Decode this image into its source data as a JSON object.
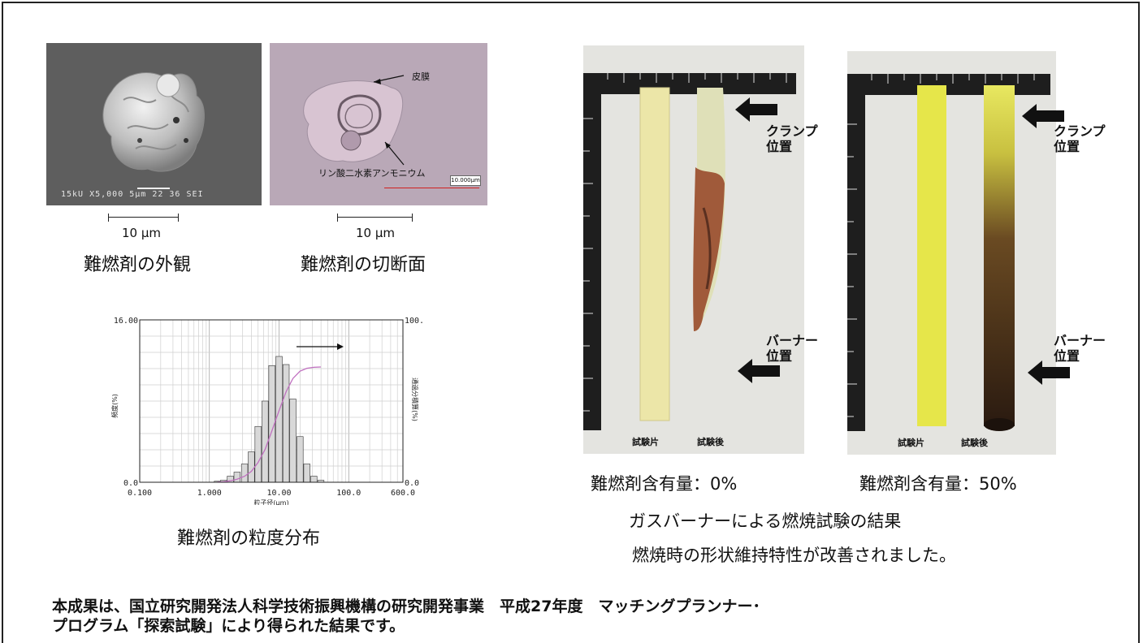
{
  "sem_image": {
    "info_text": "15kU   X5,000    5μm      22 36 SEI"
  },
  "xsec_image": {
    "label_skin": "皮膜",
    "label_core": "リン酸二水素アンモニウム",
    "scale_box": "10.000μm"
  },
  "scale_label_left": "10  μm",
  "scale_label_right": "10  μm",
  "caption_appearance": "難燃剤の外観",
  "caption_cross_section": "難燃剤の切断面",
  "histogram": {
    "caption": "難燃剤の粒度分布",
    "y_left_ticks": [
      "16.00",
      "0.0"
    ],
    "y_right_ticks": [
      "100.0",
      "0.0"
    ],
    "x_ticks": [
      "0.100",
      "1.000",
      "10.00",
      "100.0",
      "600.0"
    ],
    "xlabel": "粒子径(μm)",
    "ylabel_left": "頻度(%)",
    "ylabel_right": "通過分積算(%)"
  },
  "chart_data": {
    "type": "bar",
    "xscale": "log",
    "xlim": [
      0.1,
      600
    ],
    "ylim": [
      0,
      16
    ],
    "y2lim": [
      0,
      100
    ],
    "x": [
      1.3,
      1.6,
      2.0,
      2.5,
      3.2,
      4.0,
      5.0,
      6.3,
      7.9,
      10.0,
      12.6,
      15.8,
      20.0,
      25.1,
      31.6,
      39.8
    ],
    "values": [
      0.1,
      0.2,
      0.6,
      1.0,
      1.8,
      3.0,
      5.5,
      8.0,
      11.5,
      12.4,
      11.6,
      8.2,
      4.5,
      1.8,
      0.6,
      0.2
    ],
    "cumulative": [
      0.1,
      0.3,
      0.9,
      1.9,
      3.7,
      6.7,
      12.2,
      20.2,
      31.7,
      44.1,
      55.7,
      63.9,
      68.4,
      70.2,
      70.8,
      71.0
    ]
  },
  "photo_left": {
    "strip_labels": [
      "試験片",
      "試験後"
    ],
    "arrow_top_label": "クランプ\n位置",
    "arrow_bottom_label": "バーナー\n位置"
  },
  "photo_right": {
    "strip_labels": [
      "試験片",
      "試験後"
    ],
    "arrow_top_label": "クランプ\n位置",
    "arrow_bottom_label": "バーナー\n位置"
  },
  "content_left": "難燃剤含有量：0%",
  "content_right": "難燃剤含有量：50%",
  "burn_title": "ガスバーナーによる燃焼試験の結果",
  "burn_note": "燃焼時の形状維持特性が改善されました。",
  "footer": {
    "line1": "本成果は、国立研究開発法人科学技術振興機構の研究開発事業　平成27年度　マッチングプランナー･",
    "line2": "プログラム「探索試験」により得られた結果です。"
  },
  "colors": {
    "curve": "#c070c0",
    "burnt": "#3a2012",
    "strip_pale": "#ece6a8",
    "strip_yellow": "#e6e64a"
  }
}
